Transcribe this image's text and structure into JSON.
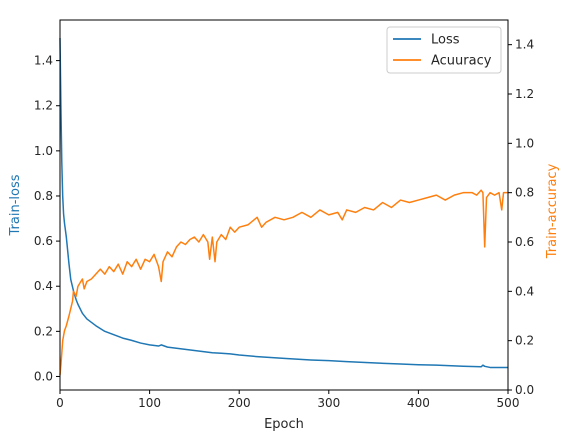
{
  "chart_data": {
    "type": "line",
    "xlabel": "Epoch",
    "ylabel_left": "Train-loss",
    "ylabel_right": "Train-accuracy",
    "xlim": [
      0,
      500
    ],
    "ylim_left": [
      -0.06,
      1.58
    ],
    "ylim_right": [
      0,
      1.5
    ],
    "x_ticks": [
      0,
      100,
      200,
      300,
      400,
      500
    ],
    "y_left_ticks": [
      0.0,
      0.2,
      0.4,
      0.6,
      0.8,
      1.0,
      1.2,
      1.4
    ],
    "y_right_ticks": [
      0.0,
      0.2,
      0.4,
      0.6,
      0.8,
      1.0,
      1.2,
      1.4
    ],
    "grid": false,
    "legend": {
      "placement": "top-right",
      "entries": [
        "Loss",
        "Acuuracy"
      ]
    },
    "colors": {
      "loss": "#1f77b4",
      "accuracy": "#ff7f0e",
      "left_label": "#1f77b4",
      "right_label": "#ff7f0e"
    },
    "series": [
      {
        "name": "Loss",
        "axis": "left",
        "x": [
          0,
          1,
          2,
          3,
          4,
          5,
          7,
          10,
          12,
          15,
          18,
          20,
          25,
          30,
          35,
          40,
          50,
          60,
          70,
          80,
          90,
          100,
          110,
          113,
          120,
          130,
          140,
          150,
          160,
          170,
          180,
          190,
          200,
          220,
          250,
          280,
          300,
          320,
          350,
          380,
          400,
          420,
          450,
          470,
          472,
          474,
          480,
          500
        ],
        "y": [
          1.5,
          1.2,
          0.95,
          0.8,
          0.72,
          0.68,
          0.62,
          0.5,
          0.43,
          0.38,
          0.34,
          0.32,
          0.28,
          0.255,
          0.24,
          0.225,
          0.2,
          0.185,
          0.17,
          0.16,
          0.148,
          0.14,
          0.135,
          0.14,
          0.13,
          0.125,
          0.12,
          0.115,
          0.11,
          0.105,
          0.103,
          0.1,
          0.095,
          0.088,
          0.08,
          0.073,
          0.07,
          0.066,
          0.06,
          0.055,
          0.052,
          0.05,
          0.045,
          0.043,
          0.05,
          0.045,
          0.04,
          0.04
        ]
      },
      {
        "name": "Acuuracy",
        "axis": "right",
        "x": [
          0,
          1,
          2,
          3,
          4,
          5,
          7,
          10,
          12,
          14,
          15,
          18,
          20,
          25,
          27,
          30,
          35,
          40,
          45,
          50,
          55,
          60,
          65,
          70,
          75,
          80,
          85,
          90,
          95,
          100,
          105,
          110,
          113,
          115,
          120,
          125,
          130,
          135,
          140,
          145,
          150,
          155,
          160,
          165,
          167,
          170,
          173,
          175,
          180,
          185,
          190,
          195,
          200,
          210,
          220,
          225,
          230,
          240,
          250,
          260,
          270,
          280,
          290,
          300,
          310,
          315,
          320,
          330,
          340,
          350,
          360,
          370,
          380,
          390,
          400,
          410,
          420,
          430,
          440,
          450,
          460,
          465,
          470,
          472,
          474,
          476,
          480,
          485,
          490,
          493,
          495,
          500
        ],
        "y": [
          0.06,
          0.1,
          0.15,
          0.2,
          0.22,
          0.24,
          0.26,
          0.3,
          0.33,
          0.36,
          0.4,
          0.38,
          0.42,
          0.45,
          0.41,
          0.44,
          0.45,
          0.47,
          0.49,
          0.47,
          0.5,
          0.48,
          0.51,
          0.47,
          0.52,
          0.5,
          0.53,
          0.49,
          0.53,
          0.52,
          0.55,
          0.5,
          0.44,
          0.52,
          0.56,
          0.54,
          0.58,
          0.6,
          0.59,
          0.61,
          0.62,
          0.6,
          0.63,
          0.6,
          0.53,
          0.62,
          0.52,
          0.6,
          0.63,
          0.61,
          0.66,
          0.64,
          0.66,
          0.67,
          0.7,
          0.66,
          0.68,
          0.7,
          0.69,
          0.7,
          0.72,
          0.7,
          0.73,
          0.71,
          0.72,
          0.69,
          0.73,
          0.72,
          0.74,
          0.73,
          0.76,
          0.74,
          0.77,
          0.76,
          0.77,
          0.78,
          0.79,
          0.77,
          0.79,
          0.8,
          0.8,
          0.79,
          0.81,
          0.8,
          0.58,
          0.78,
          0.8,
          0.79,
          0.8,
          0.73,
          0.8,
          0.8
        ]
      }
    ]
  }
}
